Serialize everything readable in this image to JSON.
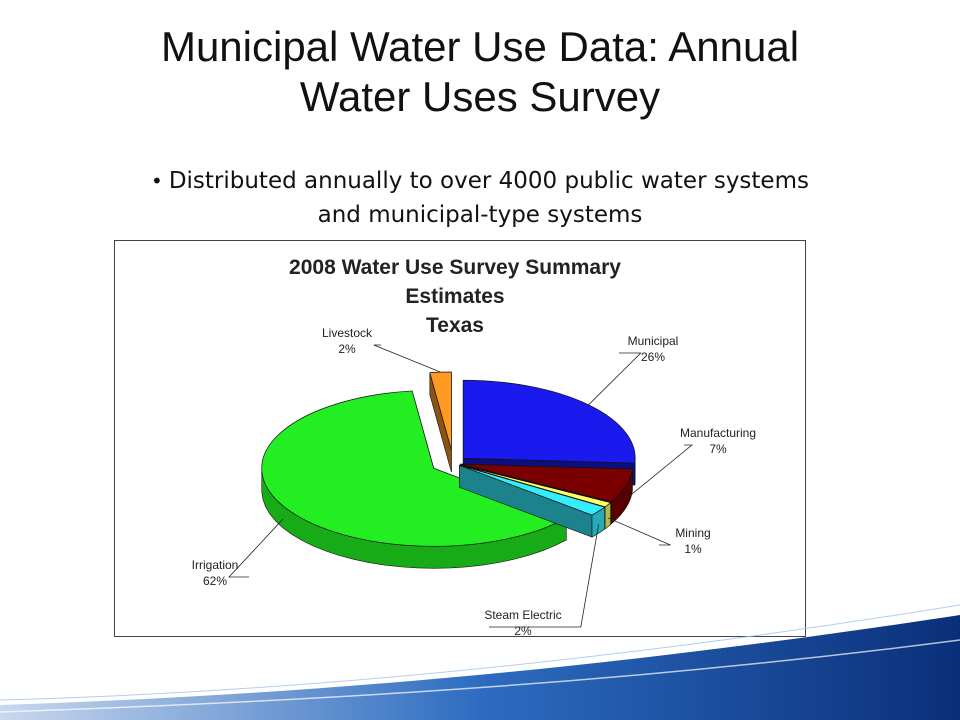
{
  "slide": {
    "title_line1": "Municipal Water Use Data: Annual",
    "title_line2": "Water Uses Survey",
    "bullet_line1": "Distributed annually to over 4000 public water systems",
    "bullet_line2": "and municipal-type systems"
  },
  "chart_data": {
    "type": "pie",
    "title_lines": [
      "2008 Water Use Survey Summary",
      "Estimates",
      "Texas"
    ],
    "slices": [
      {
        "label": "Municipal",
        "value": 26,
        "value_label": "26%",
        "color": "#1a1aee"
      },
      {
        "label": "Manufacturing",
        "value": 7,
        "value_label": "7%",
        "color": "#7a0000"
      },
      {
        "label": "Mining",
        "value": 1,
        "value_label": "1%",
        "color": "#ffff66"
      },
      {
        "label": "Steam Electric",
        "value": 2,
        "value_label": "2%",
        "color": "#33eeff"
      },
      {
        "label": "Irrigation",
        "value": 62,
        "value_label": "62%",
        "color": "#22ee22"
      },
      {
        "label": "Livestock",
        "value": 2,
        "value_label": "2%",
        "color": "#ff9922"
      }
    ],
    "legend": "none",
    "style": "3d-exploded"
  }
}
